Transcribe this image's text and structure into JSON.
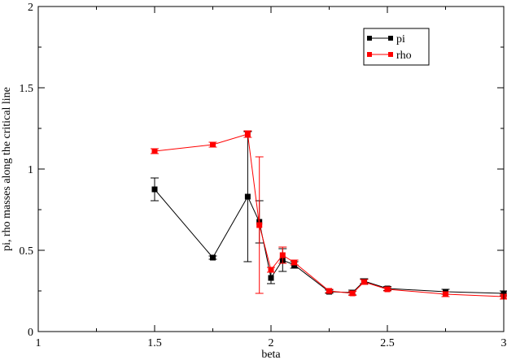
{
  "chart_data": {
    "type": "line",
    "title": "",
    "xlabel": "beta",
    "ylabel": "pi, rho masses along the critical line",
    "xlim": [
      1,
      3
    ],
    "ylim": [
      0,
      2
    ],
    "x_ticks": [
      "1",
      "1.5",
      "2",
      "2.5",
      "3"
    ],
    "y_ticks": [
      "0",
      "0.5",
      "1",
      "1.5",
      "2"
    ],
    "grid": false,
    "legend_position": "top-right",
    "series": [
      {
        "name": "pi",
        "color": "#000000",
        "x": [
          1.5,
          1.75,
          1.9,
          1.95,
          2.0,
          2.05,
          2.1,
          2.25,
          2.35,
          2.4,
          2.5,
          2.75,
          3.0
        ],
        "y": [
          0.875,
          0.455,
          0.83,
          0.675,
          0.33,
          0.44,
          0.41,
          0.245,
          0.24,
          0.31,
          0.265,
          0.245,
          0.235
        ],
        "err": [
          0.07,
          0.01,
          0.4,
          0.13,
          0.035,
          0.07,
          0.02,
          0.01,
          0.015,
          0.015,
          0.012,
          0.015,
          0.015
        ]
      },
      {
        "name": "rho",
        "color": "#ff0000",
        "x": [
          1.5,
          1.75,
          1.9,
          1.95,
          2.0,
          2.05,
          2.1,
          2.25,
          2.35,
          2.4,
          2.5,
          2.75,
          3.0
        ],
        "y": [
          1.11,
          1.15,
          1.215,
          0.655,
          0.38,
          0.47,
          0.425,
          0.25,
          0.235,
          0.305,
          0.26,
          0.23,
          0.215
        ],
        "err": [
          0.015,
          0.015,
          0.02,
          0.42,
          0.015,
          0.05,
          0.015,
          0.01,
          0.012,
          0.015,
          0.01,
          0.015,
          0.015
        ]
      }
    ]
  }
}
